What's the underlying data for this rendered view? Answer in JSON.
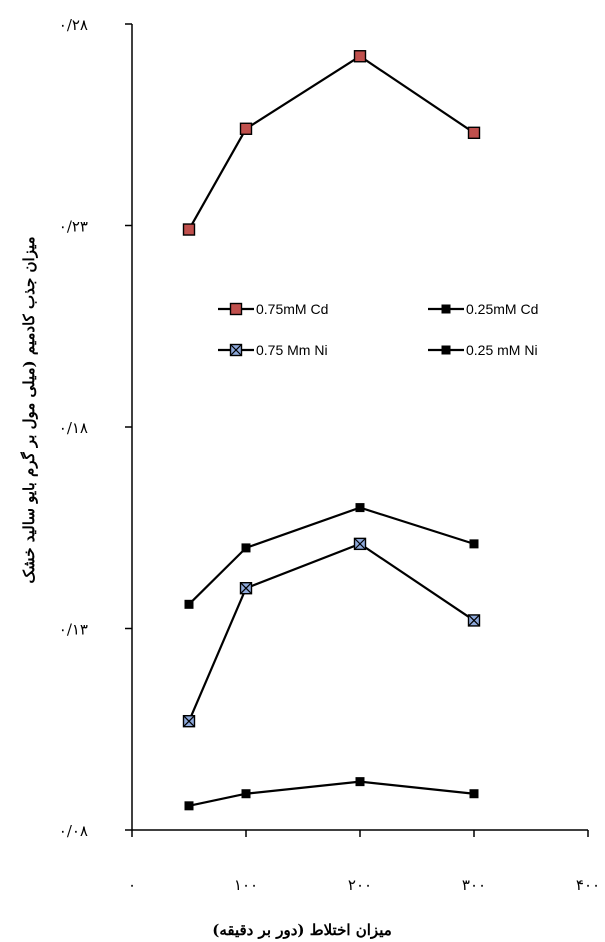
{
  "chart_data": {
    "type": "line",
    "xlabel": "میزان اختلاط (دور بر دقیقه)",
    "ylabel": "میزان جذب کادمیم (میلی مول بر گرم بایو سالید خشک",
    "xlim": [
      0,
      400
    ],
    "ylim": [
      0.08,
      0.28
    ],
    "x_ticks": [
      0,
      100,
      200,
      300,
      400
    ],
    "x_tick_labels": [
      "۰",
      "۱۰۰",
      "۲۰۰",
      "۳۰۰",
      "۴۰۰"
    ],
    "y_ticks": [
      0.08,
      0.13,
      0.18,
      0.23,
      0.28
    ],
    "y_tick_labels": [
      "۰/۰۸",
      "۰/۱۳",
      "۰/۱۸",
      "۰/۲۳",
      "۰/۲۸"
    ],
    "grid": false,
    "legend_position": "center",
    "series": [
      {
        "name": "0.75mM Cd",
        "marker": "square-red",
        "x": [
          50,
          100,
          200,
          300
        ],
        "y": [
          0.229,
          0.254,
          0.272,
          0.253
        ]
      },
      {
        "name": "0.25mM Cd",
        "marker": "square",
        "x": [
          50,
          100,
          200,
          300
        ],
        "y": [
          0.136,
          0.15,
          0.16,
          0.151
        ]
      },
      {
        "name": "0.75 Mm Ni",
        "marker": "square-x",
        "x": [
          50,
          100,
          200,
          300
        ],
        "y": [
          0.107,
          0.14,
          0.151,
          0.132
        ]
      },
      {
        "name": "0.25 mM Ni",
        "marker": "square",
        "x": [
          50,
          100,
          200,
          300
        ],
        "y": [
          0.086,
          0.089,
          0.092,
          0.089
        ]
      }
    ],
    "colors": {
      "line": "#000000",
      "marker_red_fill": "#c0504d",
      "marker_x_fill": "#8ea9db"
    }
  }
}
